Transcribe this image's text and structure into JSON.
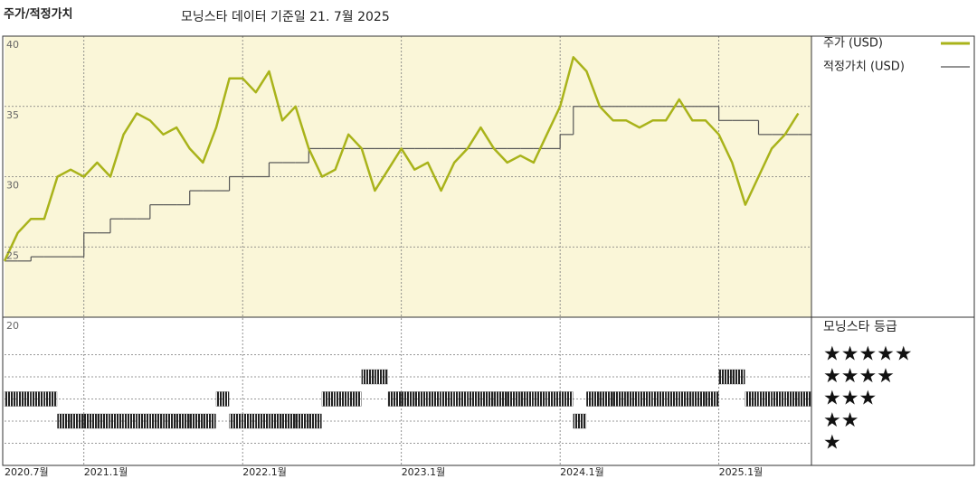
{
  "chart_data": {
    "type": "line",
    "title": "주가/적정가치",
    "subtitle": "모닝스타 데이터 기준일 21. 7월 2025",
    "x": [
      "2020-07",
      "2020-08",
      "2020-09",
      "2020-10",
      "2020-11",
      "2020-12",
      "2021-01",
      "2021-02",
      "2021-03",
      "2021-04",
      "2021-05",
      "2021-06",
      "2021-07",
      "2021-08",
      "2021-09",
      "2021-10",
      "2021-11",
      "2021-12",
      "2022-01",
      "2022-02",
      "2022-03",
      "2022-04",
      "2022-05",
      "2022-06",
      "2022-07",
      "2022-08",
      "2022-09",
      "2022-10",
      "2022-11",
      "2022-12",
      "2023-01",
      "2023-02",
      "2023-03",
      "2023-04",
      "2023-05",
      "2023-06",
      "2023-07",
      "2023-08",
      "2023-09",
      "2023-10",
      "2023-11",
      "2023-12",
      "2024-01",
      "2024-02",
      "2024-03",
      "2024-04",
      "2024-05",
      "2024-06",
      "2024-07",
      "2024-08",
      "2024-09",
      "2024-10",
      "2024-11",
      "2024-12",
      "2025-01",
      "2025-02",
      "2025-03",
      "2025-04",
      "2025-05",
      "2025-06",
      "2025-07"
    ],
    "xlim": [
      "2020-07",
      "2025-08"
    ],
    "xticks": [
      {
        "value": "2020-07",
        "label": "2020.7월"
      },
      {
        "value": "2021-01",
        "label": "2021.1월"
      },
      {
        "value": "2022-01",
        "label": "2022.1월"
      },
      {
        "value": "2023-01",
        "label": "2023.1월"
      },
      {
        "value": "2024-01",
        "label": "2024.1월"
      },
      {
        "value": "2025-01",
        "label": "2025.1월"
      }
    ],
    "ylim": [
      20,
      40
    ],
    "yticks": [
      20,
      25,
      30,
      35,
      40
    ],
    "grid": true,
    "series": [
      {
        "name": "주가 (USD)",
        "color": "#a9b31a",
        "values": [
          24,
          26,
          27,
          27,
          30,
          30.5,
          30,
          31,
          30,
          33,
          34.5,
          34,
          33,
          33.5,
          32,
          31,
          33.5,
          37,
          37,
          36,
          37.5,
          34,
          35,
          32,
          30,
          30.5,
          33,
          32,
          29,
          30.5,
          32,
          30.5,
          31,
          29,
          31,
          32,
          33.5,
          32,
          31,
          31.5,
          31,
          33,
          35,
          38.5,
          37.5,
          35,
          34,
          34,
          33.5,
          34,
          34,
          35.5,
          34,
          34,
          33,
          31,
          28,
          30,
          32,
          33,
          34.5
        ]
      },
      {
        "name": "적정가치 (USD)",
        "color": "#555555",
        "step": true,
        "values": [
          24,
          24,
          24.3,
          24.3,
          24.3,
          24.3,
          26,
          26,
          27,
          27,
          27,
          28,
          28,
          28,
          29,
          29,
          29,
          30,
          30,
          30,
          31,
          31,
          31,
          32,
          32,
          32,
          32,
          32,
          32,
          32,
          32,
          32,
          32,
          32,
          32,
          32,
          32,
          32,
          32,
          32,
          32,
          32,
          33,
          35,
          35,
          35,
          35,
          35,
          35,
          35,
          35,
          35,
          35,
          35,
          34,
          34,
          34,
          33,
          33,
          33,
          33
        ]
      }
    ],
    "rating": {
      "title": "모닝스타 등급",
      "color": "#222222",
      "levels": [
        {
          "value": 5,
          "label": "★★★★★"
        },
        {
          "value": 4,
          "label": "★★★★"
        },
        {
          "value": 3,
          "label": "★★★"
        },
        {
          "value": 2,
          "label": "★★"
        },
        {
          "value": 1,
          "label": "★"
        }
      ],
      "values": [
        3,
        3,
        3,
        3,
        2,
        2,
        2,
        2,
        2,
        2,
        2,
        2,
        2,
        2,
        2,
        2,
        3,
        2,
        2,
        2,
        2,
        2,
        2,
        2,
        3,
        3,
        3,
        4,
        4,
        3,
        3,
        3,
        3,
        3,
        3,
        3,
        3,
        3,
        3,
        3,
        3,
        3,
        3,
        2,
        3,
        3,
        3,
        3,
        3,
        3,
        3,
        3,
        3,
        3,
        4,
        4,
        3,
        3,
        3,
        3,
        3
      ]
    }
  }
}
